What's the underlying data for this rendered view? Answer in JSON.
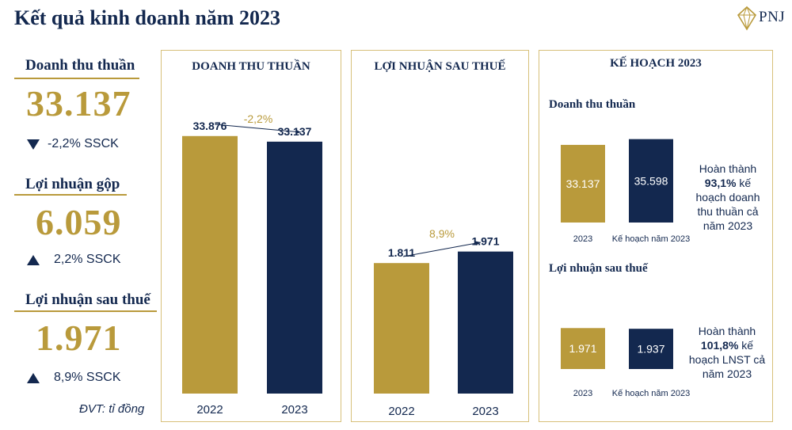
{
  "title": "Kết quả kinh doanh năm 2023",
  "logo": {
    "text": "PNJ"
  },
  "kpis": [
    {
      "label": "Doanh thu thuần",
      "value": "33.137",
      "direction": "down",
      "change": "-2,2% SSCK"
    },
    {
      "label": "Lợi nhuận gộp",
      "value": "6.059",
      "direction": "up",
      "change": "2,2% SSCK"
    },
    {
      "label": "Lợi nhuận sau thuế",
      "value": "1.971",
      "direction": "up",
      "change": "8,9% SSCK"
    }
  ],
  "unit_note": "ĐVT: tỉ đồng",
  "colors": {
    "gold": "#b99a3b",
    "navy": "#13284f",
    "border": "#d7c07a"
  },
  "chart_data": [
    {
      "type": "bar",
      "title": "DOANH THU THUẦN",
      "categories": [
        "2022",
        "2023"
      ],
      "values": [
        33876,
        33137
      ],
      "value_labels": [
        "33.876",
        "33.137"
      ],
      "bar_colors": [
        "#b99a3b",
        "#13284f"
      ],
      "change_label": "-2,2%",
      "ylim": [
        0,
        40000
      ]
    },
    {
      "type": "bar",
      "title": "LỢI NHUẬN SAU THUẾ",
      "categories": [
        "2022",
        "2023"
      ],
      "values": [
        1811,
        1971
      ],
      "value_labels": [
        "1.811",
        "1.971"
      ],
      "bar_colors": [
        "#b99a3b",
        "#13284f"
      ],
      "change_label": "8,9%",
      "ylim": [
        0,
        4000
      ]
    },
    {
      "type": "bar",
      "title": "Doanh thu thuần",
      "categories": [
        "2023",
        "Kế hoạch năm 2023"
      ],
      "values": [
        33137,
        35598
      ],
      "value_labels": [
        "33.137",
        "35.598"
      ],
      "bar_colors": [
        "#b99a3b",
        "#13284f"
      ],
      "ylim": [
        0,
        36500
      ]
    },
    {
      "type": "bar",
      "title": "Lợi nhuận sau thuế",
      "categories": [
        "2023",
        "Kế hoạch năm 2023"
      ],
      "values": [
        1971,
        1937
      ],
      "value_labels": [
        "1.971",
        "1.937"
      ],
      "bar_colors": [
        "#b99a3b",
        "#13284f"
      ],
      "ylim": [
        0,
        2020
      ]
    }
  ],
  "plan_panel": {
    "title": "KẾ HOẠCH 2023",
    "notes": [
      {
        "pre": "Hoàn thành",
        "pct": "93,1%",
        "post1": "kế",
        "post2": "hoạch doanh",
        "post3": "thu thuần cả",
        "post4": "năm 2023"
      },
      {
        "pre": "Hoàn thành",
        "pct": "101,8%",
        "post1": "kế",
        "post2": "hoạch LNST cả",
        "post3": "năm 2023",
        "post4": ""
      }
    ]
  }
}
